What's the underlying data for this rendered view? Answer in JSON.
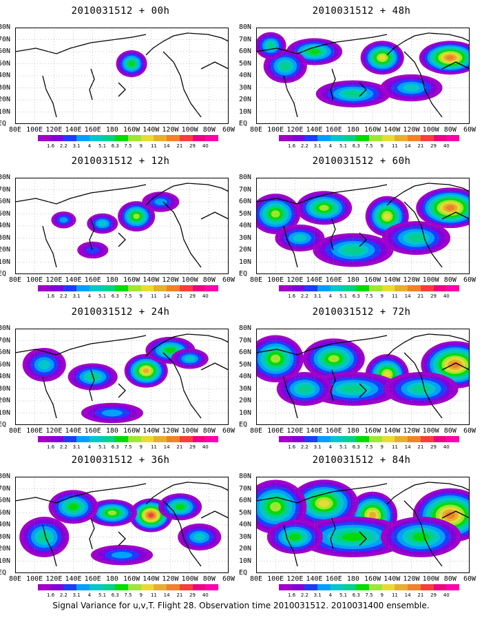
{
  "caption": "Signal Variance for u,v,T. Flight 28. Observation time 2010031512. 2010031400 ensemble.",
  "lat_labels": [
    "80N",
    "70N",
    "60N",
    "50N",
    "40N",
    "30N",
    "20N",
    "10N",
    "EQ"
  ],
  "lon_labels": [
    "80E",
    "100E",
    "120E",
    "140E",
    "160E",
    "180",
    "160W",
    "140W",
    "120W",
    "100W",
    "80W",
    "60W"
  ],
  "colorbar": {
    "levels": [
      "1.6",
      "2.2",
      "3.1",
      "4",
      "5.1",
      "6.3",
      "7.5",
      "9",
      "11",
      "14",
      "21",
      "29",
      "40"
    ],
    "colors": [
      "#a000c8",
      "#8200dc",
      "#1e3cff",
      "#00a0ff",
      "#00c8c8",
      "#00d28c",
      "#00dc00",
      "#a0e632",
      "#e6dc32",
      "#e6af2d",
      "#f08228",
      "#fa3c3c",
      "#f00082"
    ]
  },
  "panels": [
    {
      "title": "2010031512 + 00h",
      "level": 0
    },
    {
      "title": "2010031512 + 12h",
      "level": 1
    },
    {
      "title": "2010031512 + 24h",
      "level": 2
    },
    {
      "title": "2010031512 + 36h",
      "level": 3
    },
    {
      "title": "2010031512 + 48h",
      "level": 4
    },
    {
      "title": "2010031512 + 60h",
      "level": 5
    },
    {
      "title": "2010031512 + 72h",
      "level": 6
    },
    {
      "title": "2010031512 + 84h",
      "level": 7
    }
  ]
}
